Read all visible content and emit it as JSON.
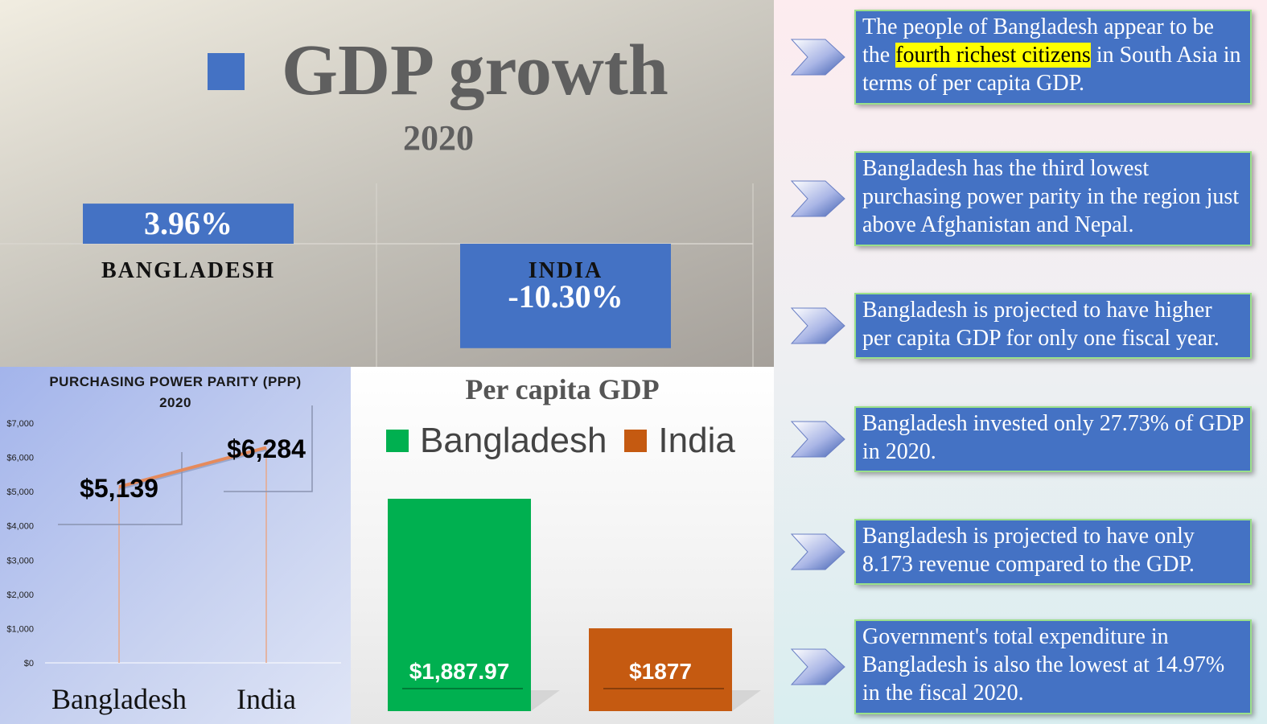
{
  "gdp_growth": {
    "title": "GDP growth",
    "subtitle": "2020",
    "legend_color": "#4472c4"
  },
  "chart_data": [
    {
      "type": "bar",
      "title": "GDP growth",
      "subtitle": "2020",
      "categories": [
        "BANGLADESH",
        "INDIA"
      ],
      "values": [
        3.96,
        -10.3
      ],
      "value_labels": [
        "3.96%",
        "-10.30%"
      ],
      "ylim": [
        -12,
        5
      ],
      "color": "#4472c4",
      "grid": true
    },
    {
      "type": "line",
      "title": "PURCHASING POWER PARITY (PPP)",
      "subtitle": "2020",
      "categories": [
        "Bangladesh",
        "India"
      ],
      "values": [
        5139,
        6284
      ],
      "value_labels": [
        "$5,139",
        "$6,284"
      ],
      "yticks": [
        "$0",
        "$1,000",
        "$2,000",
        "$3,000",
        "$4,000",
        "$5,000",
        "$6,000",
        "$7,000"
      ],
      "ylim": [
        0,
        7000
      ],
      "line_color": "#e58a5c"
    },
    {
      "type": "bar",
      "title": "Per capita GDP",
      "categories": [
        "Bangladesh",
        "India"
      ],
      "values": [
        1887.97,
        1877
      ],
      "value_labels": [
        "$1,887.97",
        "$1877"
      ],
      "colors": [
        "#00b050",
        "#c55a11"
      ],
      "legend": [
        {
          "name": "Bangladesh",
          "color": "#00b050"
        },
        {
          "name": "India",
          "color": "#c55a11"
        }
      ],
      "legend_position": "top"
    }
  ],
  "bullets": [
    {
      "pre": "The people of Bangladesh appear to be the ",
      "highlight": "fourth richest citizens",
      "post": " in South Asia in terms of per capita GDP."
    },
    {
      "text": "Bangladesh has the third lowest purchasing power parity in the region just above Afghanistan and Nepal."
    },
    {
      "text": "Bangladesh is projected to have higher per capita GDP for only one fiscal year."
    },
    {
      "text": "Bangladesh invested only 27.73% of GDP in 2020."
    },
    {
      "text": "Bangladesh is projected to have only 8.173 revenue compared to the GDP."
    },
    {
      "text": "Government's total expenditure in Bangladesh is also the lowest at 14.97% in the fiscal 2020."
    }
  ]
}
